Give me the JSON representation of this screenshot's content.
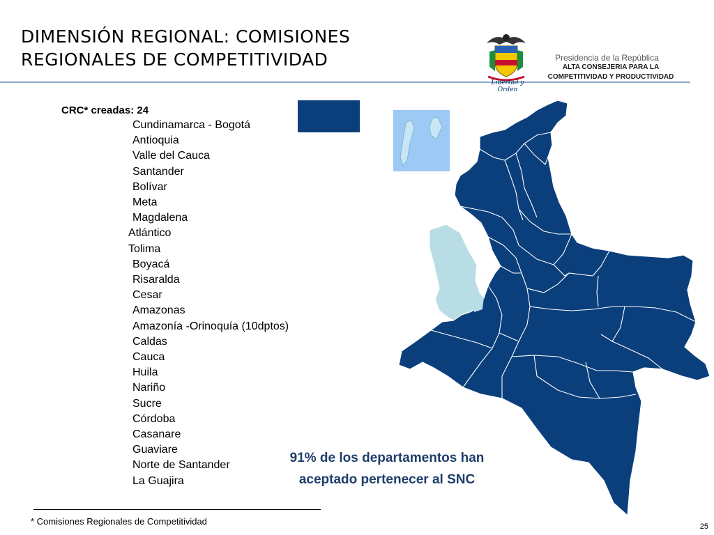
{
  "slide": {
    "title_line1": "DIMENSIÓN REGIONAL: COMISIONES",
    "title_line2": "REGIONALES DE COMPETITIVIDAD",
    "page_number": "25"
  },
  "header": {
    "motto": "Libertad y Orden",
    "presidencia": "Presidencia de la República",
    "consejeria_line1": "ALTA CONSEJERIA PARA LA",
    "consejeria_line2": "COMPETITIVIDAD Y PRODUCTIVIDAD"
  },
  "crc": {
    "heading": "CRC* creadas:  24",
    "items": [
      "Cundinamarca - Bogotá",
      "Antioquia",
      "Valle del Cauca",
      "Santander",
      "Bolívar",
      "Meta",
      "Magdalena",
      "Atlántico",
      "Tolima",
      "Boyacá",
      "Risaralda",
      "Cesar",
      "Amazonas",
      "Amazonía -Orinoquía (10dptos)",
      "Caldas",
      "Cauca",
      "Huila",
      "Nariño",
      "Sucre",
      "Córdoba",
      "Casanare",
      "Guaviare",
      "Norte de Santander",
      "La Guajira"
    ]
  },
  "callout": {
    "line1": "91% de los departamentos han",
    "line2": "aceptado pertenecer al SNC"
  },
  "footnote": "* Comisiones Regionales de Competitividad",
  "colors": {
    "map_dark": "#0b3f7c",
    "map_light": "#b9dde4",
    "islands_bg": "#9ccaf4",
    "title_rule": "#8aa8c9",
    "callout_text": "#1f3e6b"
  }
}
